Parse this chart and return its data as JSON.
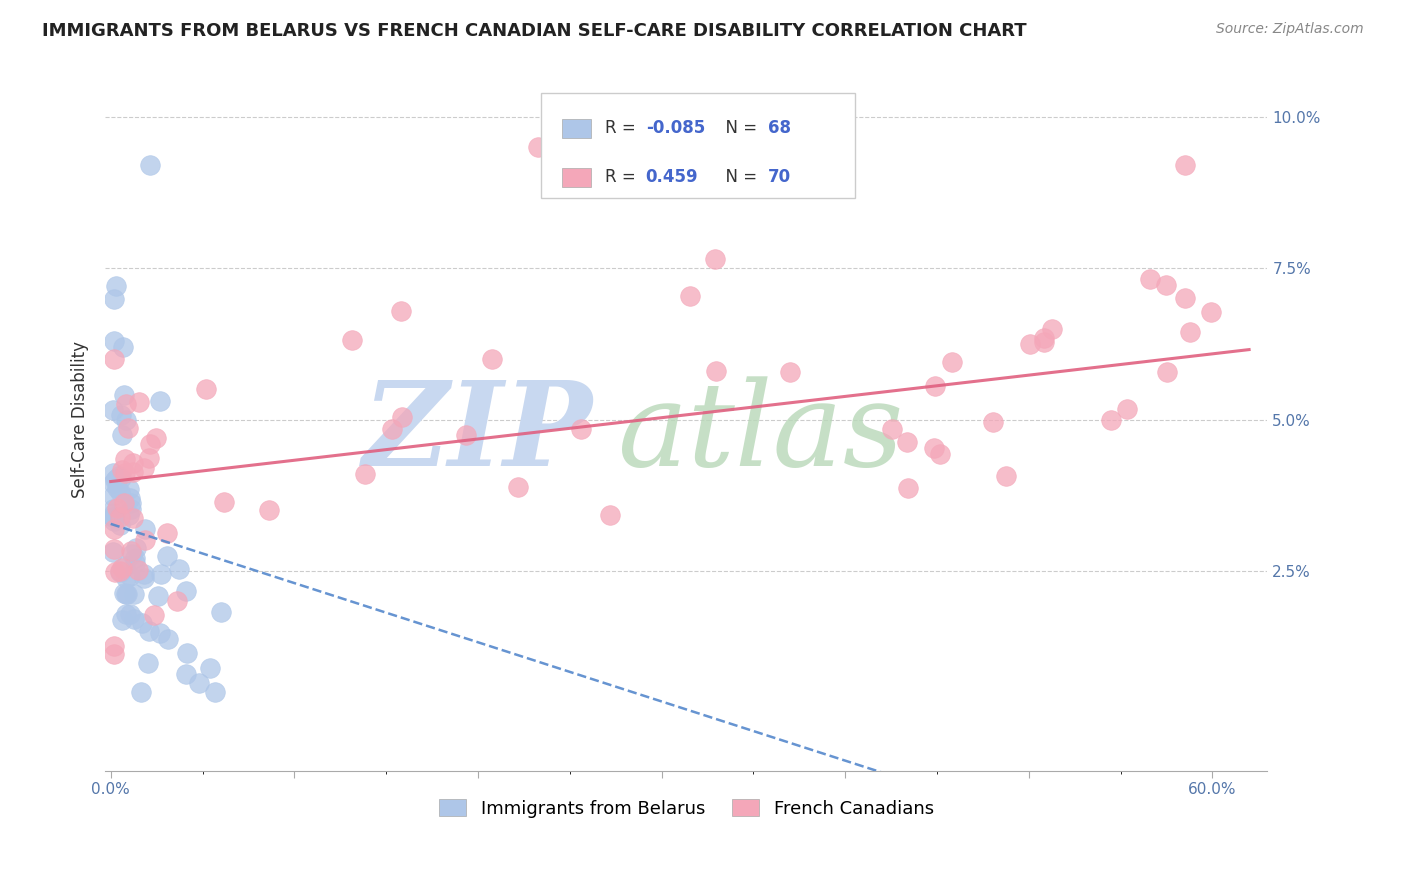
{
  "title": "IMMIGRANTS FROM BELARUS VS FRENCH CANADIAN SELF-CARE DISABILITY CORRELATION CHART",
  "source": "Source: ZipAtlas.com",
  "ylabel": "Self-Care Disability",
  "blue_color": "#aec6e8",
  "pink_color": "#f4a7b9",
  "trend_blue_color": "#5588cc",
  "trend_pink_color": "#e06080",
  "watermark_zip_color": "#c8d8f0",
  "watermark_atlas_color": "#b8d8b8",
  "xlim": [
    -0.003,
    0.63
  ],
  "ylim": [
    -0.008,
    0.108
  ],
  "ytick_vals": [
    0.0,
    0.025,
    0.05,
    0.075,
    0.1
  ],
  "ytick_labels": [
    "",
    "2.5%",
    "5.0%",
    "7.5%",
    "10.0%"
  ],
  "xtick_vals": [
    0.0,
    0.1,
    0.2,
    0.3,
    0.4,
    0.5,
    0.6
  ],
  "xtick_left_label": "0.0%",
  "xtick_right_label": "60.0%",
  "legend_r1": "R = -0.085",
  "legend_n1": "N = 68",
  "legend_r2": "R =  0.459",
  "legend_n2": "N = 70",
  "legend_label1": "Immigrants from Belarus",
  "legend_label2": "French Canadians",
  "title_fontsize": 13,
  "source_fontsize": 10,
  "tick_fontsize": 11,
  "legend_fontsize": 13
}
